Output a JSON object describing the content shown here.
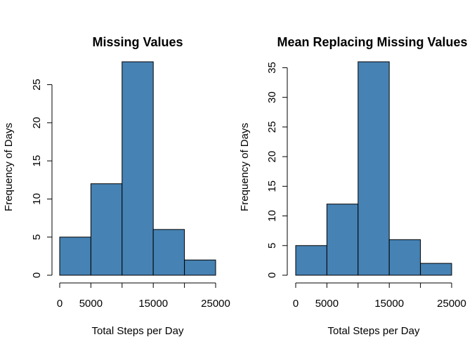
{
  "chart_data": [
    {
      "type": "bar",
      "title": "Missing Values",
      "xlabel": "Total Steps per Day",
      "ylabel": "Frequency of Days",
      "bins": [
        [
          0,
          5000
        ],
        [
          5000,
          10000
        ],
        [
          10000,
          15000
        ],
        [
          15000,
          20000
        ],
        [
          20000,
          25000
        ]
      ],
      "values": [
        5,
        12,
        28,
        6,
        2
      ],
      "xlim": [
        0,
        25000
      ],
      "ylim": [
        0,
        28
      ],
      "x_ticks": [
        0,
        5000,
        10000,
        15000,
        20000,
        25000
      ],
      "x_tick_labels": [
        "0",
        "5000",
        "",
        "15000",
        "",
        "25000"
      ],
      "y_ticks": [
        0,
        5,
        10,
        15,
        20,
        25
      ],
      "y_tick_labels": [
        "0",
        "5",
        "10",
        "15",
        "20",
        "25"
      ],
      "bar_color": "#4682B4",
      "grid": false
    },
    {
      "type": "bar",
      "title": "Mean Replacing Missing Values",
      "xlabel": "Total Steps per Day",
      "ylabel": "Frequency of Days",
      "bins": [
        [
          0,
          5000
        ],
        [
          5000,
          10000
        ],
        [
          10000,
          15000
        ],
        [
          15000,
          20000
        ],
        [
          20000,
          25000
        ]
      ],
      "values": [
        5,
        12,
        36,
        6,
        2
      ],
      "xlim": [
        0,
        25000
      ],
      "ylim": [
        0,
        36
      ],
      "x_ticks": [
        0,
        5000,
        10000,
        15000,
        20000,
        25000
      ],
      "x_tick_labels": [
        "0",
        "5000",
        "",
        "15000",
        "",
        "25000"
      ],
      "y_ticks": [
        0,
        5,
        10,
        15,
        20,
        25,
        30,
        35
      ],
      "y_tick_labels": [
        "0",
        "5",
        "10",
        "15",
        "20",
        "25",
        "30",
        "35"
      ],
      "bar_color": "#4682B4",
      "grid": false
    }
  ]
}
